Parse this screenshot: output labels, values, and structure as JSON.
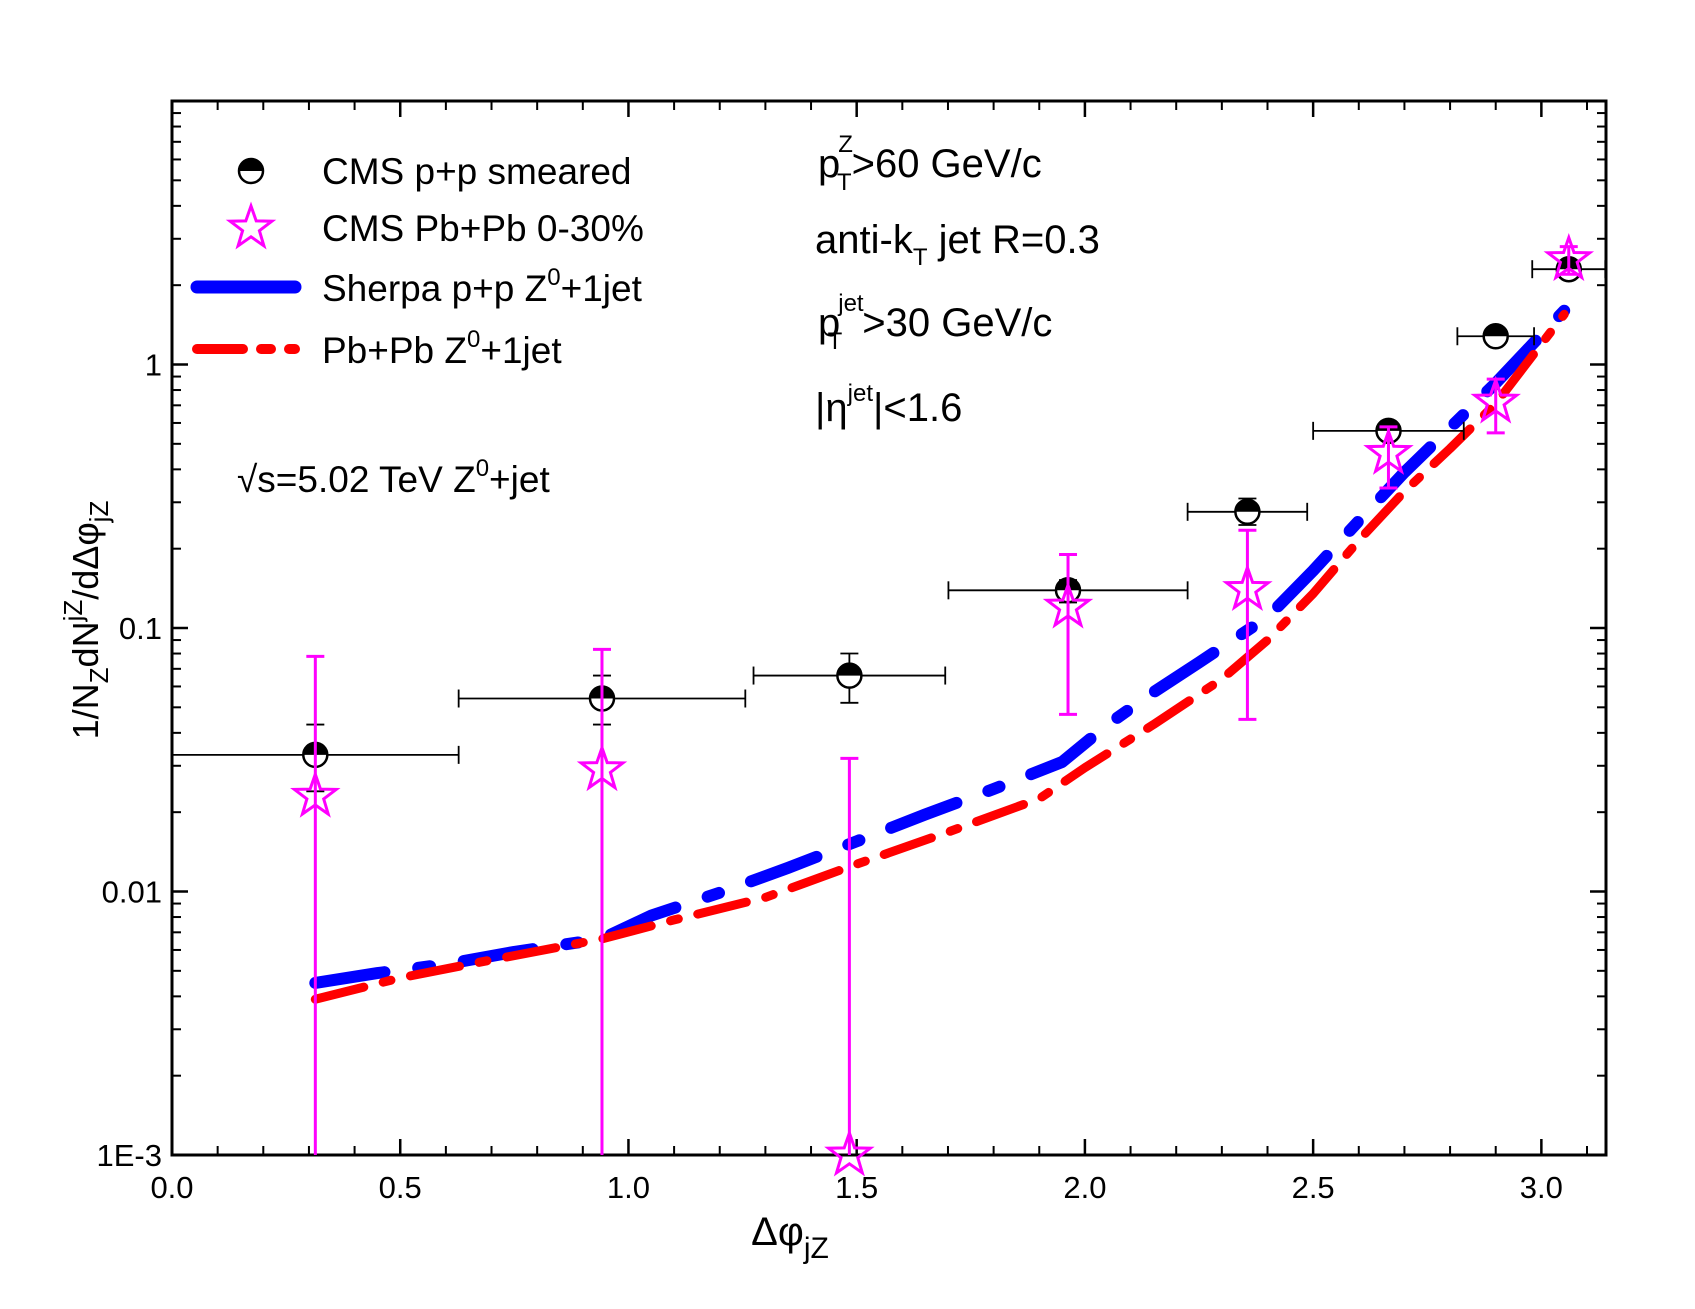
{
  "chart_data": {
    "type": "scatter",
    "x_axis": {
      "label": "Δφ",
      "label_sub": "jZ",
      "range": [
        0.0,
        3.1416
      ],
      "ticks": [
        "0.0",
        "0.5",
        "1.0",
        "1.5",
        "2.0",
        "2.5",
        "3.0"
      ]
    },
    "y_axis": {
      "label_prefix": "1/N",
      "label_sub1": "Z",
      "label_mid": "dN",
      "label_sup": "jZ",
      "label_mid2": "/dΔφ",
      "label_sub2": "jZ",
      "scale": "log",
      "range": [
        0.001,
        10
      ],
      "ticks": [
        "1E-3",
        "0.01",
        "0.1",
        "1"
      ]
    },
    "legend": {
      "placement": "top-left",
      "items": [
        {
          "label": "CMS p+p smeared"
        },
        {
          "label": "CMS Pb+Pb 0-30%"
        },
        {
          "label_pre": "Sherpa p+p Z",
          "label_sup": "0",
          "label_post": "+1jet"
        },
        {
          "label_pre": "Pb+Pb  Z",
          "label_sup": "0",
          "label_post": "+1jet"
        }
      ]
    },
    "annotations": {
      "ptz": {
        "p": "p",
        "sub": "T",
        "sup": "Z",
        "rest": ">60 GeV/c"
      },
      "algo": {
        "pre": "anti-k",
        "sub": "T",
        "rest": " jet   R=0.3"
      },
      "ptjet": {
        "p": "p",
        "sub": "T",
        "sup": "jet",
        "rest": ">30 GeV/c"
      },
      "eta": {
        "pre": "|η",
        "sup": "jet",
        "rest": "|<1.6"
      },
      "energy": {
        "pre": "√s=5.02 TeV  Z",
        "sup": "0",
        "rest": "+jet"
      }
    },
    "series": [
      {
        "name": "CMS p+p smeared",
        "kind": "points",
        "marker": "half-filled-circle",
        "color": "#000000",
        "points": [
          {
            "x": 0.314,
            "y": 0.033,
            "xerr": [
              0.314,
              0.314
            ],
            "ylow": 0.024,
            "yhigh": 0.043
          },
          {
            "x": 0.942,
            "y": 0.054,
            "xerr": [
              0.314,
              0.314
            ],
            "ylow": 0.043,
            "yhigh": 0.066
          },
          {
            "x": 1.484,
            "y": 0.066,
            "xerr": [
              0.21,
              0.21
            ],
            "ylow": 0.052,
            "yhigh": 0.08
          },
          {
            "x": 1.963,
            "y": 0.139,
            "xerr": [
              0.262,
              0.262
            ],
            "ylow": 0.125,
            "yhigh": 0.152
          },
          {
            "x": 2.356,
            "y": 0.276,
            "xerr": [
              0.131,
              0.131
            ],
            "ylow": 0.246,
            "yhigh": 0.31
          },
          {
            "x": 2.665,
            "y": 0.56,
            "xerr": [
              0.165,
              0.165
            ],
            "ylow": 0.53,
            "yhigh": 0.6
          },
          {
            "x": 2.9,
            "y": 1.28,
            "xerr": [
              0.084,
              0.084
            ],
            "ylow": 1.25,
            "yhigh": 1.32
          },
          {
            "x": 3.06,
            "y": 2.3,
            "xerr": [
              0.08,
              0.08
            ],
            "ylow": 2.2,
            "yhigh": 2.4
          }
        ]
      },
      {
        "name": "CMS Pb+Pb 0-30%",
        "kind": "points",
        "marker": "open-star",
        "color": "#ff00ff",
        "points": [
          {
            "x": 0.314,
            "y": 0.023,
            "ylow": 0.001,
            "yhigh": 0.078
          },
          {
            "x": 0.942,
            "y": 0.029,
            "ylow": 0.001,
            "yhigh": 0.083
          },
          {
            "x": 1.484,
            "y": 0.001,
            "ylow": 0.001,
            "yhigh": 0.032
          },
          {
            "x": 1.963,
            "y": 0.12,
            "ylow": 0.047,
            "yhigh": 0.19
          },
          {
            "x": 2.356,
            "y": 0.14,
            "ylow": 0.045,
            "yhigh": 0.235
          },
          {
            "x": 2.665,
            "y": 0.46,
            "ylow": 0.34,
            "yhigh": 0.58
          },
          {
            "x": 2.9,
            "y": 0.72,
            "ylow": 0.55,
            "yhigh": 0.88
          },
          {
            "x": 3.06,
            "y": 2.5,
            "ylow": 2.2,
            "yhigh": 2.8
          }
        ]
      },
      {
        "name": "Sherpa p+p Z0+1jet",
        "kind": "line",
        "style": "dashed-thick",
        "color": "#0000ff",
        "x": [
          0.314,
          0.45,
          0.6,
          0.75,
          0.94,
          1.05,
          1.2,
          1.35,
          1.5,
          1.65,
          1.8,
          1.95,
          2.05,
          2.15,
          2.25,
          2.4,
          2.5,
          2.6,
          2.7,
          2.8,
          2.9,
          3.05
        ],
        "y": [
          0.0045,
          0.0049,
          0.0053,
          0.0059,
          0.0066,
          0.0081,
          0.0099,
          0.0123,
          0.0155,
          0.0196,
          0.0245,
          0.031,
          0.043,
          0.057,
          0.074,
          0.11,
          0.165,
          0.255,
          0.39,
          0.575,
          0.85,
          1.6
        ]
      },
      {
        "name": "Pb+Pb Z0+1jet",
        "kind": "line",
        "style": "dash-dot",
        "color": "#ff0000",
        "x": [
          0.314,
          0.5,
          0.7,
          0.94,
          1.1,
          1.3,
          1.5,
          1.7,
          1.9,
          2.0,
          2.15,
          2.3,
          2.4,
          2.5,
          2.6,
          2.7,
          2.8,
          2.9,
          3.05
        ],
        "y": [
          0.0039,
          0.0047,
          0.0055,
          0.0066,
          0.0078,
          0.0095,
          0.0127,
          0.0168,
          0.0225,
          0.0295,
          0.043,
          0.064,
          0.09,
          0.135,
          0.215,
          0.33,
          0.48,
          0.71,
          1.55
        ]
      }
    ]
  }
}
